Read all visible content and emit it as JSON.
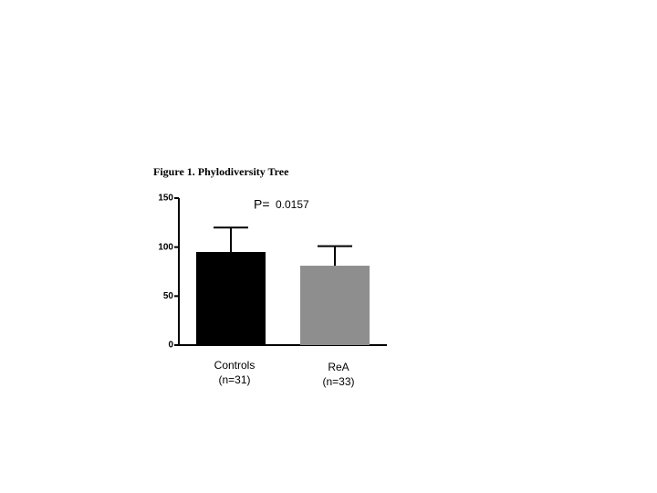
{
  "chart_data": {
    "type": "bar",
    "title": "Figure 1. Phylodiversity Tree",
    "annotation": [
      "P=",
      "0.0157"
    ],
    "categories": [
      [
        "Controls",
        "(n=31)"
      ],
      [
        "ReA",
        "(n=33)"
      ]
    ],
    "values": [
      95,
      81
    ],
    "errors": [
      25,
      20
    ],
    "colors": [
      "#000000",
      "#8e8e8e"
    ],
    "ylim": [
      0,
      150
    ],
    "yticks": [
      0,
      50,
      100,
      150
    ],
    "grid": false
  }
}
